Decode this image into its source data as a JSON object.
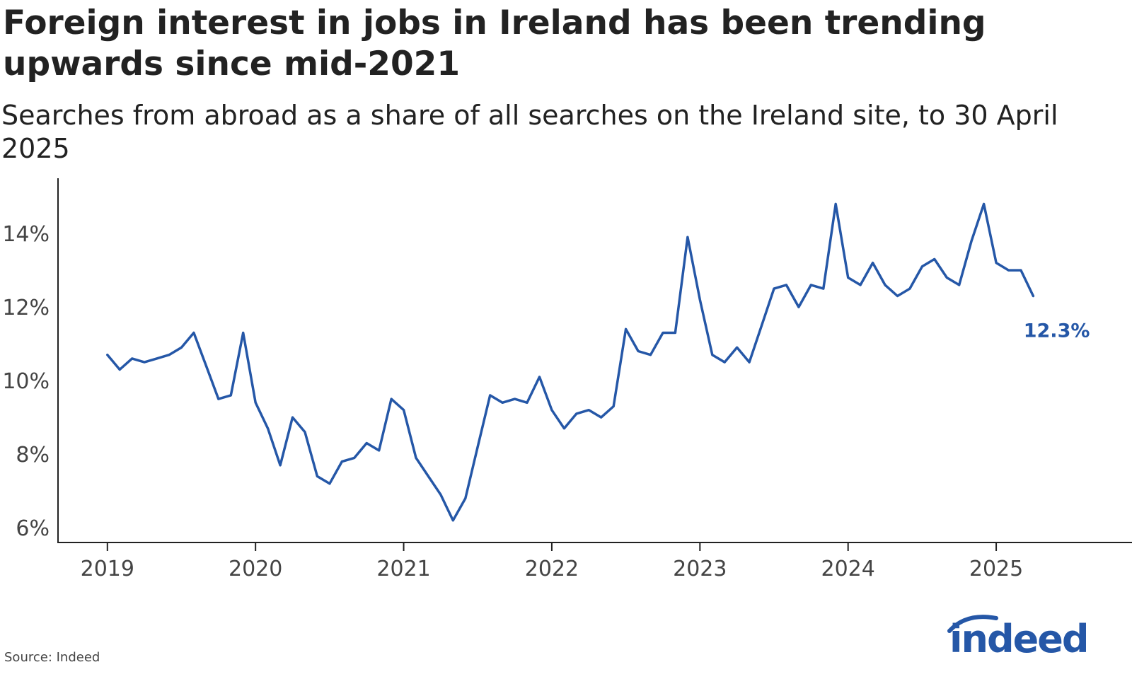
{
  "title": "Foreign interest in jobs in Ireland has been trending upwards since mid-2021",
  "subtitle": "Searches from abroad as a share of all searches on the Ireland site, to 30 April 2025",
  "source": "Source: Indeed",
  "logo_text": "indeed",
  "colors": {
    "line": "#2557a7",
    "text": "#222222",
    "axis": "#222222",
    "logo": "#2557a7"
  },
  "chart_data": {
    "type": "line",
    "title": "Foreign interest in jobs in Ireland has been trending upwards since mid-2021",
    "subtitle": "Searches from abroad as a share of all searches on the Ireland site, to 30 April 2025",
    "xlabel": "",
    "ylabel": "",
    "x_ticks": [
      "2019",
      "2020",
      "2021",
      "2022",
      "2023",
      "2024",
      "2025"
    ],
    "y_ticks": [
      "6%",
      "8%",
      "10%",
      "12%",
      "14%"
    ],
    "ylim": [
      5.6,
      15.5
    ],
    "xlim": [
      "2018-09",
      "2025-12"
    ],
    "grid": false,
    "legend": "none",
    "end_label": "12.3%",
    "series": [
      {
        "x": [
          "2019-01",
          "2019-02",
          "2019-03",
          "2019-04",
          "2019-05",
          "2019-06",
          "2019-07",
          "2019-08",
          "2019-09",
          "2019-10",
          "2019-11",
          "2019-12",
          "2020-01",
          "2020-02",
          "2020-03",
          "2020-04",
          "2020-05",
          "2020-06",
          "2020-07",
          "2020-08",
          "2020-09",
          "2020-10",
          "2020-11",
          "2020-12",
          "2021-01",
          "2021-02",
          "2021-03",
          "2021-04",
          "2021-05",
          "2021-06",
          "2021-07",
          "2021-08",
          "2021-09",
          "2021-10",
          "2021-11",
          "2021-12",
          "2022-01",
          "2022-02",
          "2022-03",
          "2022-04",
          "2022-05",
          "2022-06",
          "2022-07",
          "2022-08",
          "2022-09",
          "2022-10",
          "2022-11",
          "2022-12",
          "2023-01",
          "2023-02",
          "2023-03",
          "2023-04",
          "2023-05",
          "2023-06",
          "2023-07",
          "2023-08",
          "2023-09",
          "2023-10",
          "2023-11",
          "2023-12",
          "2024-01",
          "2024-02",
          "2024-03",
          "2024-04",
          "2024-05",
          "2024-06",
          "2024-07",
          "2024-08",
          "2024-09",
          "2024-10",
          "2024-11",
          "2024-12",
          "2025-01",
          "2025-02",
          "2025-03",
          "2025-04"
        ],
        "values": [
          10.7,
          10.3,
          10.6,
          10.5,
          10.6,
          10.7,
          10.9,
          11.3,
          10.4,
          9.5,
          9.6,
          11.3,
          9.4,
          8.7,
          7.7,
          9.0,
          8.6,
          7.4,
          7.2,
          7.8,
          7.9,
          8.3,
          8.1,
          9.5,
          9.2,
          7.9,
          7.4,
          6.9,
          6.2,
          6.8,
          8.2,
          9.6,
          9.4,
          9.5,
          9.4,
          10.1,
          9.2,
          8.7,
          9.1,
          9.2,
          9.0,
          9.3,
          11.4,
          10.8,
          10.7,
          11.3,
          11.3,
          13.9,
          12.2,
          10.7,
          10.5,
          10.9,
          10.5,
          11.5,
          12.5,
          12.6,
          12.0,
          12.6,
          12.5,
          14.8,
          12.8,
          12.6,
          13.2,
          12.6,
          12.3,
          12.5,
          13.1,
          13.3,
          12.8,
          12.6,
          13.8,
          14.8,
          13.2,
          13.0,
          13.0,
          12.3
        ]
      }
    ]
  }
}
